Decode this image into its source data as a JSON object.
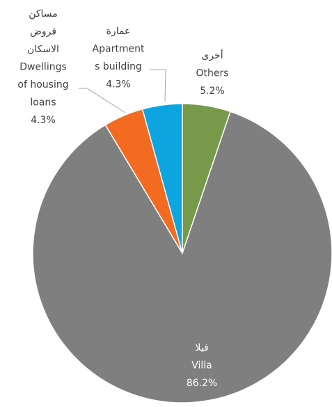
{
  "chart_data": {
    "type": "pie",
    "categories": [
      [
        "أخرى",
        "Others"
      ],
      [
        "فيلا",
        "Villa"
      ],
      [
        "مساكن",
        "قروض",
        "الاسكان",
        "Dwellings",
        "of housing",
        "loans"
      ],
      [
        "عمارة",
        "Apartment",
        "s building"
      ]
    ],
    "values": [
      5.2,
      86.2,
      4.3,
      4.3
    ],
    "value_labels": [
      "5.2%",
      "86.2%",
      "4.3%",
      "4.3%"
    ],
    "colors": [
      "#77994a",
      "#7f7f80",
      "#f26b21",
      "#0ca5e0"
    ]
  }
}
